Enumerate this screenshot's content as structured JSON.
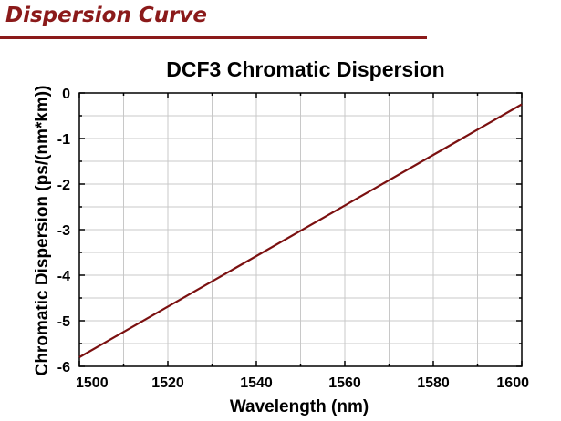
{
  "header": {
    "title": "Dispersion Curve",
    "accent_color": "#8b1a1a"
  },
  "chart_data": {
    "type": "line",
    "title": "DCF3 Chromatic Dispersion",
    "xlabel": "Wavelength (nm)",
    "ylabel": "Chromatic Dispersion (ps/(nm*km))",
    "xlim": [
      1500,
      1600
    ],
    "ylim": [
      -6,
      0
    ],
    "xticks": [
      1500,
      1520,
      1540,
      1560,
      1580,
      1600
    ],
    "yticks": [
      0,
      -1,
      -2,
      -3,
      -4,
      -5,
      -6
    ],
    "grid": true,
    "series": [
      {
        "name": "DCF3",
        "color": "#7b1010",
        "x": [
          1500,
          1600
        ],
        "y": [
          -5.8,
          -0.25
        ]
      }
    ]
  }
}
